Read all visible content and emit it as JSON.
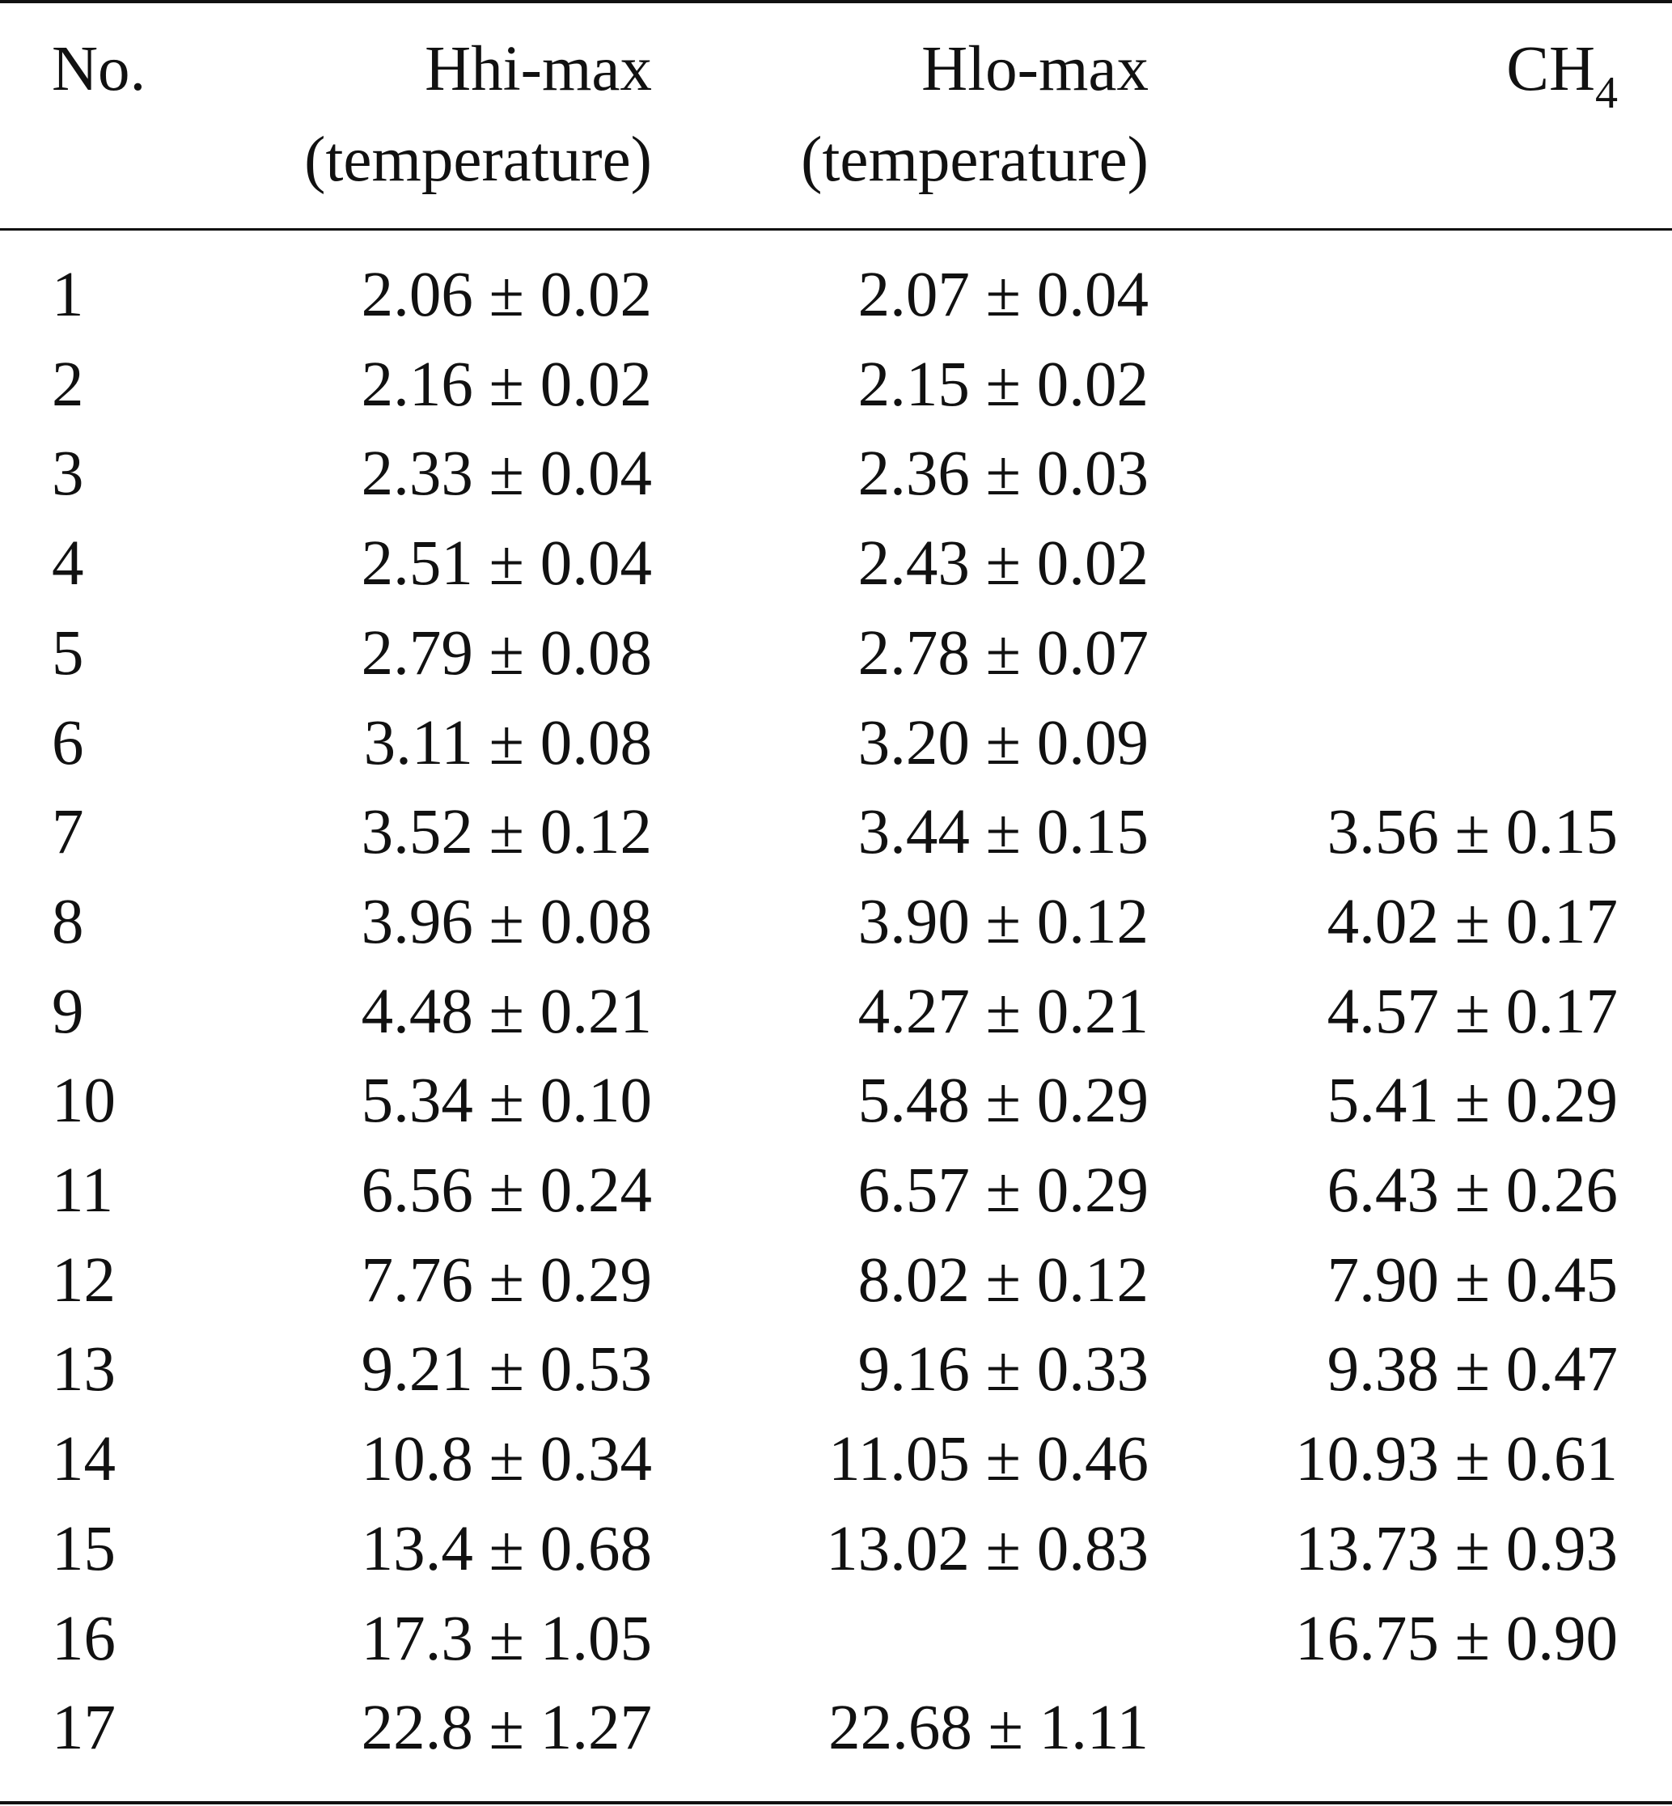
{
  "table": {
    "headers": {
      "no": "No.",
      "hhi_line1": "Hhi-max",
      "hhi_line2": "(temperature)",
      "hlo_line1": "Hlo-max",
      "hlo_line2": "(temperature)",
      "ch4_base": "CH",
      "ch4_sub": "4"
    },
    "rows": [
      {
        "no": "1",
        "hhi": "2.06 ± 0.02",
        "hlo": "2.07 ± 0.04",
        "ch4": ""
      },
      {
        "no": "2",
        "hhi": "2.16 ± 0.02",
        "hlo": "2.15 ± 0.02",
        "ch4": ""
      },
      {
        "no": "3",
        "hhi": "2.33 ± 0.04",
        "hlo": "2.36 ± 0.03",
        "ch4": ""
      },
      {
        "no": "4",
        "hhi": "2.51 ± 0.04",
        "hlo": "2.43 ± 0.02",
        "ch4": ""
      },
      {
        "no": "5",
        "hhi": "2.79 ± 0.08",
        "hlo": "2.78 ± 0.07",
        "ch4": ""
      },
      {
        "no": "6",
        "hhi": "3.11 ± 0.08",
        "hlo": "3.20 ± 0.09",
        "ch4": ""
      },
      {
        "no": "7",
        "hhi": "3.52 ± 0.12",
        "hlo": "3.44 ± 0.15",
        "ch4": "3.56 ± 0.15"
      },
      {
        "no": "8",
        "hhi": "3.96 ± 0.08",
        "hlo": "3.90 ± 0.12",
        "ch4": "4.02 ± 0.17"
      },
      {
        "no": "9",
        "hhi": "4.48 ± 0.21",
        "hlo": "4.27 ± 0.21",
        "ch4": "4.57 ± 0.17"
      },
      {
        "no": "10",
        "hhi": "5.34 ± 0.10",
        "hlo": "5.48 ± 0.29",
        "ch4": "5.41 ± 0.29"
      },
      {
        "no": "11",
        "hhi": "6.56 ± 0.24",
        "hlo": "6.57 ± 0.29",
        "ch4": "6.43 ± 0.26"
      },
      {
        "no": "12",
        "hhi": "7.76 ± 0.29",
        "hlo": "8.02 ± 0.12",
        "ch4": "7.90 ± 0.45"
      },
      {
        "no": "13",
        "hhi": "9.21 ± 0.53",
        "hlo": "9.16 ± 0.33",
        "ch4": "9.38 ± 0.47"
      },
      {
        "no": "14",
        "hhi": "10.8 ± 0.34",
        "hlo": "11.05 ± 0.46",
        "ch4": "10.93 ± 0.61"
      },
      {
        "no": "15",
        "hhi": "13.4 ± 0.68",
        "hlo": "13.02 ± 0.83",
        "ch4": "13.73 ± 0.93"
      },
      {
        "no": "16",
        "hhi": "17.3 ± 1.05",
        "hlo": "",
        "ch4": "16.75 ± 0.90"
      },
      {
        "no": "17",
        "hhi": "22.8 ± 1.27",
        "hlo": "22.68 ± 1.11",
        "ch4": ""
      }
    ]
  }
}
